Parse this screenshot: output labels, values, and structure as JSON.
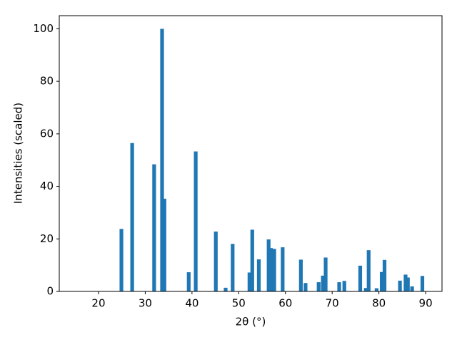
{
  "chart_data": {
    "type": "bar",
    "xlabel": "2θ (°)",
    "ylabel": "Intensities (scaled)",
    "color": "#1f77b4",
    "x": [
      24.9,
      27.2,
      31.9,
      33.6,
      34.1,
      39.3,
      40.8,
      45.1,
      47.2,
      48.7,
      52.3,
      52.9,
      54.3,
      56.4,
      56.9,
      57.6,
      59.4,
      63.3,
      64.3,
      67.1,
      68.0,
      68.6,
      71.5,
      72.6,
      76.0,
      77.2,
      77.8,
      79.5,
      80.6,
      81.2,
      84.5,
      85.7,
      86.2,
      87.1,
      89.3
    ],
    "values": [
      23.8,
      56.5,
      48.4,
      100,
      35.3,
      7.3,
      53.3,
      22.8,
      1.4,
      18.1,
      7.2,
      23.5,
      12.2,
      19.8,
      16.5,
      16.2,
      16.8,
      12.1,
      3.2,
      3.5,
      6.0,
      12.9,
      3.5,
      4.0,
      9.8,
      1.3,
      15.7,
      1.2,
      7.4,
      12.0,
      4.1,
      6.4,
      5.3,
      1.9,
      5.9
    ],
    "xlim": [
      11.6,
      93.5
    ],
    "ylim": [
      0,
      105
    ],
    "xticks": [
      20,
      30,
      40,
      50,
      60,
      70,
      80,
      90
    ],
    "yticks": [
      0,
      20,
      40,
      60,
      80,
      100
    ]
  }
}
